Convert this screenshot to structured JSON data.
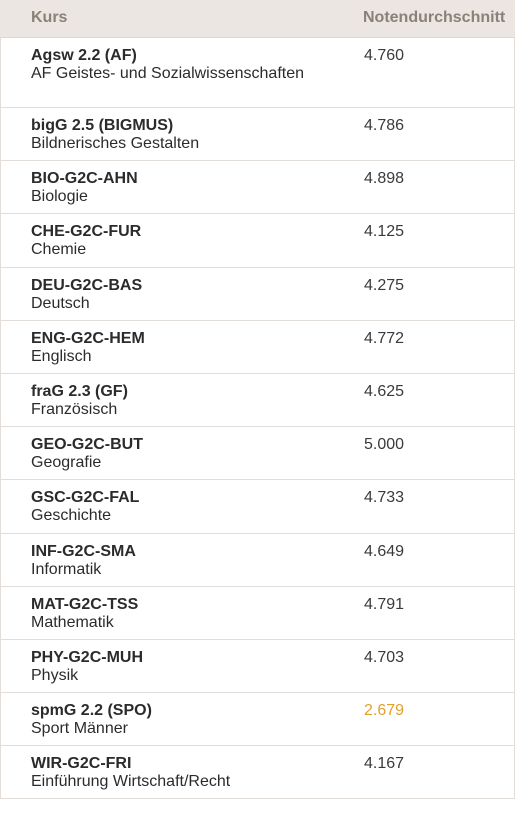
{
  "header": {
    "course_label": "Kurs",
    "average_label": "Notendurchschnitt"
  },
  "colors": {
    "header_bg": "#ebe6e1",
    "header_text": "#8a8178",
    "warning_grade": "#e0a02a"
  },
  "rows": [
    {
      "code": "Agsw 2.2 (AF)",
      "name": "AF Geistes- und Sozialwissenschaften",
      "grade": "4.760",
      "warning": false
    },
    {
      "code": "bigG 2.5 (BIGMUS)",
      "name": "Bildnerisches Gestalten",
      "grade": "4.786",
      "warning": false
    },
    {
      "code": "BIO-G2C-AHN",
      "name": "Biologie",
      "grade": "4.898",
      "warning": false
    },
    {
      "code": "CHE-G2C-FUR",
      "name": "Chemie",
      "grade": "4.125",
      "warning": false
    },
    {
      "code": "DEU-G2C-BAS",
      "name": "Deutsch",
      "grade": "4.275",
      "warning": false
    },
    {
      "code": "ENG-G2C-HEM",
      "name": "Englisch",
      "grade": "4.772",
      "warning": false
    },
    {
      "code": "fraG 2.3 (GF)",
      "name": "Französisch",
      "grade": "4.625",
      "warning": false
    },
    {
      "code": "GEO-G2C-BUT",
      "name": "Geografie",
      "grade": "5.000",
      "warning": false
    },
    {
      "code": "GSC-G2C-FAL",
      "name": "Geschichte",
      "grade": "4.733",
      "warning": false
    },
    {
      "code": "INF-G2C-SMA",
      "name": "Informatik",
      "grade": "4.649",
      "warning": false
    },
    {
      "code": "MAT-G2C-TSS",
      "name": "Mathematik",
      "grade": "4.791",
      "warning": false
    },
    {
      "code": "PHY-G2C-MUH",
      "name": "Physik",
      "grade": "4.703",
      "warning": false
    },
    {
      "code": "spmG 2.2 (SPO)",
      "name": "Sport Männer",
      "grade": "2.679",
      "warning": true
    },
    {
      "code": "WIR-G2C-FRI",
      "name": "Einführung Wirtschaft/Recht",
      "grade": "4.167",
      "warning": false
    }
  ]
}
